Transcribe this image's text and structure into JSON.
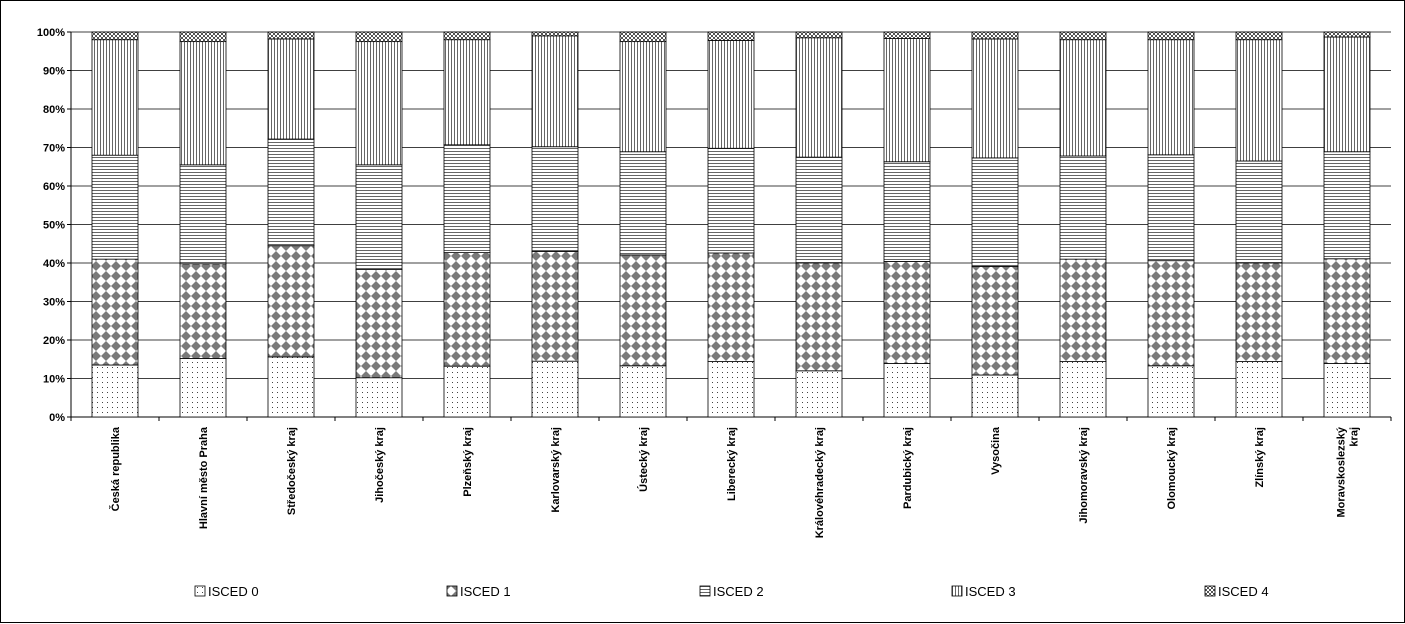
{
  "chart_data": {
    "type": "bar",
    "stacked": true,
    "percent": true,
    "categories": [
      [
        "Česká republika"
      ],
      [
        "Hlavní město Praha"
      ],
      [
        "Středočeský kraj"
      ],
      [
        "Jihočeský kraj"
      ],
      [
        "Plzeňský kraj"
      ],
      [
        "Karlovarský kraj"
      ],
      [
        "Ústecký kraj"
      ],
      [
        "Liberecký kraj"
      ],
      [
        "Královéhradecký kraj"
      ],
      [
        "Pardubický kraj"
      ],
      [
        "Vysočina"
      ],
      [
        "Jihomoravský kraj"
      ],
      [
        "Olomoucký kraj"
      ],
      [
        "Zlínský kraj"
      ],
      [
        "Moravskoslezský",
        "kraj"
      ]
    ],
    "series": [
      {
        "name": "ISCED 0",
        "pattern": "dots",
        "values": [
          13.5,
          15.2,
          15.6,
          10.2,
          13.2,
          14.5,
          13.3,
          14.4,
          12.0,
          13.9,
          10.9,
          14.4,
          13.3,
          14.4,
          13.9
        ]
      },
      {
        "name": "ISCED 1",
        "pattern": "diamonds",
        "values": [
          27.5,
          24.6,
          28.9,
          28.1,
          29.5,
          28.5,
          28.8,
          28.2,
          28.0,
          26.5,
          28.2,
          26.6,
          27.3,
          25.6,
          27.2
        ]
      },
      {
        "name": "ISCED 2",
        "pattern": "hlines",
        "values": [
          27.0,
          25.7,
          27.7,
          27.2,
          28.0,
          27.2,
          26.8,
          27.2,
          27.5,
          25.9,
          28.2,
          26.8,
          27.5,
          26.5,
          27.8
        ]
      },
      {
        "name": "ISCED 3",
        "pattern": "vlines",
        "values": [
          30.0,
          32.0,
          26.0,
          32.0,
          27.3,
          28.8,
          28.6,
          28.0,
          31.0,
          32.0,
          30.9,
          30.2,
          29.9,
          31.5,
          29.8
        ]
      },
      {
        "name": "ISCED 4",
        "pattern": "checker",
        "values": [
          2.0,
          2.5,
          1.8,
          2.5,
          2.0,
          1.0,
          2.5,
          2.2,
          1.5,
          1.7,
          1.8,
          2.0,
          2.0,
          2.0,
          1.3
        ]
      }
    ],
    "yticks": [
      "0%",
      "10%",
      "20%",
      "30%",
      "40%",
      "50%",
      "60%",
      "70%",
      "80%",
      "90%",
      "100%"
    ],
    "ylim": [
      0,
      100
    ],
    "grid": true,
    "legend_position": "bottom"
  }
}
